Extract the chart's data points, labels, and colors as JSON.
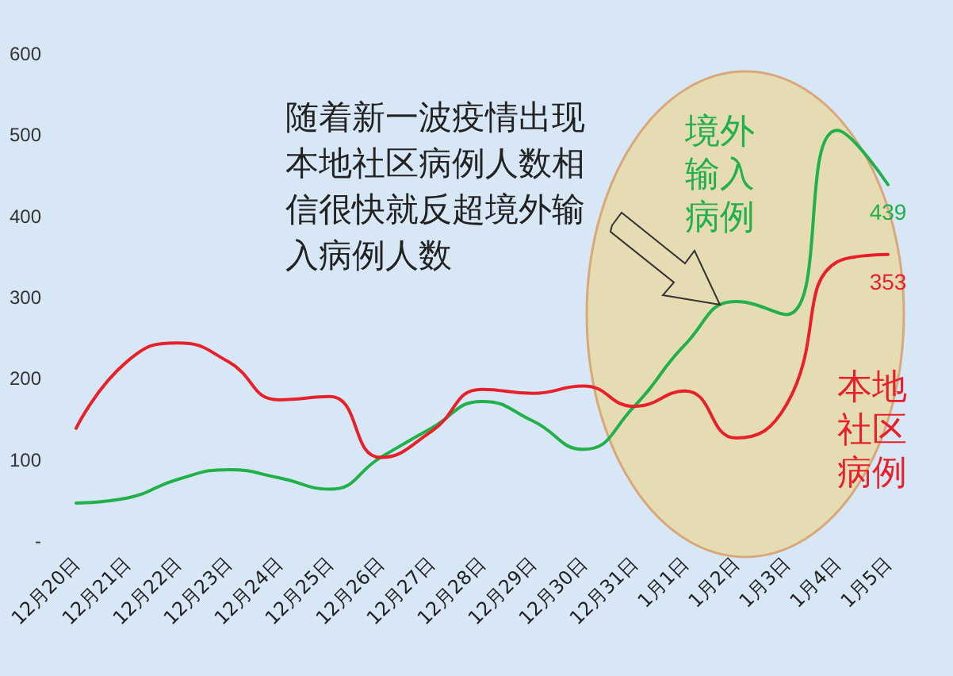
{
  "chart_data": {
    "type": "line",
    "categories": [
      "12月20日",
      "12月21日",
      "12月22日",
      "12月23日",
      "12月24日",
      "12月25日",
      "12月26日",
      "12月27日",
      "12月28日",
      "12月29日",
      "12月30日",
      "12月31日",
      "1月1日",
      "1月2日",
      "1月3日",
      "1月4日",
      "1月5日"
    ],
    "series": [
      {
        "name": "境外输入病例",
        "color": "#22b04a",
        "values": [
          47,
          53,
          76,
          88,
          78,
          64,
          103,
          139,
          172,
          148,
          113,
          166,
          242,
          295,
          279,
          506,
          439
        ],
        "value_labels": [
          null,
          null,
          null,
          null,
          null,
          null,
          null,
          null,
          null,
          null,
          null,
          null,
          null,
          null,
          null,
          null,
          "439"
        ]
      },
      {
        "name": "本地社区病例",
        "color": "#e8202a",
        "values": [
          139,
          221,
          244,
          221,
          174,
          178,
          103,
          135,
          187,
          182,
          191,
          166,
          185,
          127,
          168,
          344,
          353
        ],
        "value_labels": [
          null,
          null,
          null,
          null,
          null,
          null,
          null,
          null,
          null,
          null,
          null,
          null,
          null,
          null,
          null,
          null,
          "353"
        ]
      }
    ],
    "ylim": [
      0,
      600
    ],
    "yticks": [
      {
        "value": 0,
        "label": "-"
      },
      100,
      200,
      300,
      400,
      500,
      600
    ],
    "grid": false,
    "legend": false,
    "marker": "none",
    "line_style": "solid",
    "annotations": [
      "随着新一波疫情出现本地社区病例人数相信很快就反超境外输入病例人数"
    ]
  }
}
